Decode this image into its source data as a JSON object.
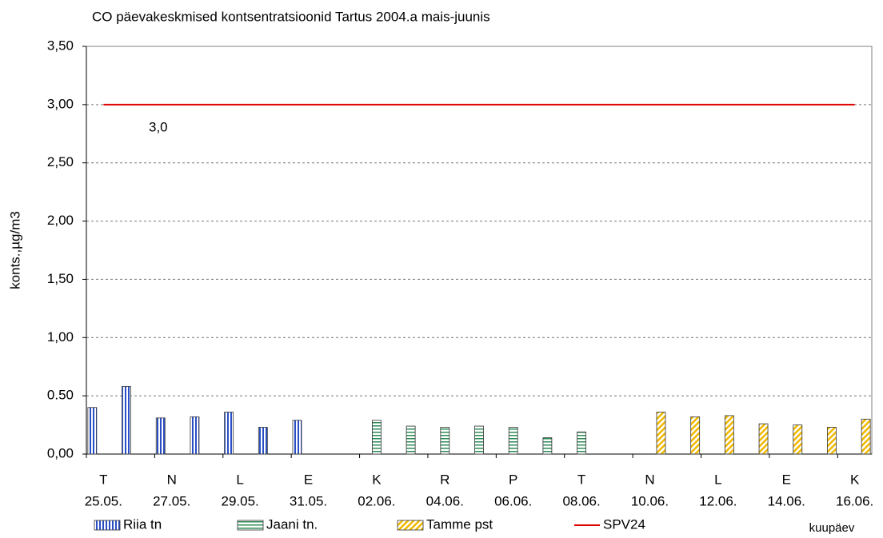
{
  "chart_data": {
    "type": "bar",
    "title": "CO päevakeskmised kontsentratsioonid Tartus 2004.a mais-juunis",
    "y_label": "konts.,µg/m3",
    "x_label": "kuupäev",
    "categories": [
      "25.05.",
      null,
      "27.05.",
      null,
      "29.05.",
      null,
      "31.05.",
      null,
      "02.06.",
      null,
      "04.06.",
      null,
      "06.06.",
      null,
      "08.06.",
      null,
      "10.06.",
      null,
      "12.06.",
      null,
      "14.06.",
      null,
      "16.06."
    ],
    "weekdays": [
      "T",
      null,
      "N",
      null,
      "L",
      null,
      "E",
      null,
      "K",
      null,
      "R",
      null,
      "P",
      null,
      "T",
      null,
      "N",
      null,
      "L",
      null,
      "E",
      null,
      "K"
    ],
    "series": [
      {
        "name": "Riia tn",
        "type": "bar",
        "color": "#2a4fc4",
        "hatch": "vertical",
        "values": [
          0.4,
          0.58,
          0.31,
          0.32,
          0.36,
          0.23,
          0.29,
          null,
          null,
          null,
          null,
          null,
          null,
          null,
          null,
          null,
          null,
          null,
          null,
          null,
          null,
          null,
          null
        ]
      },
      {
        "name": "Jaani tn.",
        "type": "bar",
        "color": "#2e8b57",
        "hatch": "horizontal",
        "values": [
          null,
          null,
          null,
          null,
          null,
          null,
          null,
          null,
          0.29,
          0.24,
          0.23,
          0.24,
          0.23,
          0.14,
          0.19,
          null,
          null,
          null,
          null,
          null,
          null,
          null,
          null
        ]
      },
      {
        "name": "Tamme pst",
        "type": "bar",
        "color": "#f0b800",
        "hatch": "diagonal",
        "values": [
          null,
          null,
          null,
          null,
          null,
          null,
          null,
          null,
          null,
          null,
          null,
          null,
          null,
          null,
          null,
          null,
          0.36,
          0.32,
          0.33,
          0.26,
          0.25,
          0.23,
          0.3
        ]
      },
      {
        "name": "SPV24",
        "type": "line",
        "color": "#e00000",
        "values": [
          3.0,
          3.0,
          3.0,
          3.0,
          3.0,
          3.0,
          3.0,
          3.0,
          3.0,
          3.0,
          3.0,
          3.0,
          3.0,
          3.0,
          3.0,
          3.0,
          3.0,
          3.0,
          3.0,
          3.0,
          3.0,
          3.0,
          3.0
        ]
      }
    ],
    "annotation": "3,0",
    "ylim": [
      0,
      3.5
    ],
    "yticks": [
      {
        "value": 0,
        "label": "0,00"
      },
      {
        "value": 0.5,
        "label": "0.50"
      },
      {
        "value": 1,
        "label": "1,00"
      },
      {
        "value": 1.5,
        "label": "1,50"
      },
      {
        "value": 2,
        "label": "2,00"
      },
      {
        "value": 2.5,
        "label": "2,50"
      },
      {
        "value": 3,
        "label": "3,00"
      },
      {
        "value": 3.5,
        "label": "3,50"
      }
    ],
    "grid": true
  }
}
